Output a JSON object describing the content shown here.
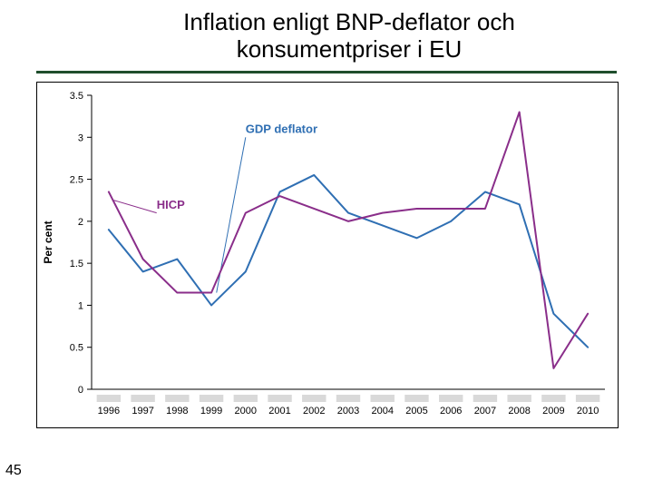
{
  "page_number": "45",
  "title_line1": "Inflation enligt BNP-deflator och",
  "title_line2": "konsumentpriser i EU",
  "title_fontsize": 26,
  "title_rule_color": "#1f4e2c",
  "title_rule_width": 3,
  "chart": {
    "type": "line",
    "background_color": "#ffffff",
    "axis_color": "#000000",
    "axis_fontsize": 12,
    "tick_fontsize": 11,
    "ylabel": "Per cent",
    "ylabel_fontsize": 12,
    "ylim": [
      0,
      3.5
    ],
    "ytick_step": 0.5,
    "yticks": [
      0,
      0.5,
      1,
      1.5,
      2,
      2.5,
      3,
      3.5
    ],
    "xlim": [
      1995.5,
      2010.5
    ],
    "xticks": [
      1996,
      1997,
      1998,
      1999,
      2000,
      2001,
      2002,
      2003,
      2004,
      2005,
      2006,
      2007,
      2008,
      2009,
      2010
    ],
    "xtick_band_color": "#d9d9d9",
    "xtick_band_height": 8,
    "line_width": 2,
    "series": [
      {
        "name": "GDP deflator",
        "label": "GDP deflator",
        "label_color": "#2f6fb3",
        "label_fontsize": 13,
        "label_weight": "bold",
        "label_x": 2000.0,
        "label_y": 3.05,
        "color": "#2f6fb3",
        "x": [
          1996,
          1997,
          1998,
          1999,
          2000,
          2001,
          2002,
          2003,
          2004,
          2005,
          2006,
          2007,
          2008,
          2009,
          2010
        ],
        "y": [
          1.9,
          1.4,
          1.55,
          1.0,
          1.4,
          2.35,
          2.55,
          2.1,
          1.95,
          1.8,
          2.0,
          2.35,
          2.2,
          0.9,
          0.5
        ]
      },
      {
        "name": "HICP",
        "label": "HICP",
        "label_color": "#8a2e8a",
        "label_fontsize": 13,
        "label_weight": "bold",
        "label_x": 1997.4,
        "label_y": 2.15,
        "color": "#8a2e8a",
        "x": [
          1996,
          1997,
          1998,
          1999,
          2000,
          2001,
          2002,
          2003,
          2004,
          2005,
          2006,
          2007,
          2008,
          2009,
          2010
        ],
        "y": [
          2.35,
          1.55,
          1.15,
          1.15,
          2.1,
          2.3,
          2.15,
          2.0,
          2.1,
          2.15,
          2.15,
          2.15,
          3.3,
          0.25,
          0.9
        ]
      }
    ],
    "callouts": [
      {
        "from_x": 2000.0,
        "from_y": 3.0,
        "to_x": 1999.15,
        "to_y": 1.15,
        "color": "#2f6fb3"
      },
      {
        "from_x": 1997.4,
        "from_y": 2.1,
        "to_x": 1996.15,
        "to_y": 2.25,
        "color": "#8a2e8a"
      }
    ]
  }
}
